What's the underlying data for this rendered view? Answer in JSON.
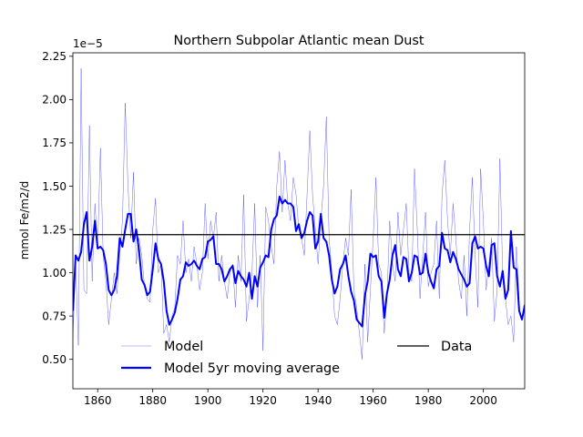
{
  "chart_data": {
    "type": "line",
    "title": "Northern Subpolar Atlantic  mean Dust",
    "ylabel": "mmol Fe/m2/d",
    "xlabel": "",
    "offset_label": "1e−5",
    "scale": 1e-05,
    "xlim": [
      1851,
      2015
    ],
    "ylim": [
      0.33,
      2.27
    ],
    "x_ticks": [
      1860,
      1880,
      1900,
      1920,
      1940,
      1960,
      1980,
      2000
    ],
    "x_tick_labels": [
      "1860",
      "1880",
      "1900",
      "1920",
      "1940",
      "1960",
      "1980",
      "2000"
    ],
    "y_ticks": [
      0.5,
      0.75,
      1.0,
      1.25,
      1.5,
      1.75,
      2.0,
      2.25
    ],
    "y_tick_labels": [
      "0.50",
      "0.75",
      "1.00",
      "1.25",
      "1.50",
      "1.75",
      "2.00",
      "2.25"
    ],
    "legend": {
      "position": "bottom",
      "entries": [
        "Model",
        "Model 5yr moving average",
        "Data"
      ]
    },
    "series": [
      {
        "name": "Model",
        "style": "thin",
        "color": "#0000ff",
        "x_start": 1851,
        "x_step": 1,
        "values": [
          0.62,
          1.05,
          0.58,
          2.18,
          0.9,
          0.88,
          1.85,
          0.95,
          1.4,
          1.15,
          1.72,
          1.1,
          0.95,
          0.7,
          0.85,
          1.0,
          0.88,
          1.1,
          1.3,
          1.98,
          1.5,
          1.2,
          1.58,
          1.05,
          1.2,
          1.1,
          0.92,
          0.85,
          0.83,
          1.25,
          1.43,
          1.0,
          1.05,
          0.65,
          0.7,
          0.6,
          0.75,
          0.8,
          1.1,
          1.05,
          1.3,
          1.0,
          1.08,
          0.95,
          1.15,
          1.05,
          0.9,
          1.0,
          1.4,
          1.08,
          1.3,
          1.2,
          1.35,
          0.95,
          1.1,
          0.95,
          0.85,
          1.0,
          1.05,
          0.8,
          1.1,
          0.95,
          1.45,
          0.72,
          0.85,
          1.0,
          1.4,
          0.8,
          1.1,
          0.55,
          1.38,
          1.3,
          1.15,
          1.05,
          1.5,
          1.7,
          1.35,
          1.65,
          1.4,
          1.3,
          1.55,
          1.45,
          1.25,
          1.2,
          1.1,
          1.45,
          1.82,
          1.45,
          1.25,
          1.05,
          1.3,
          1.5,
          1.9,
          1.2,
          1.0,
          0.75,
          0.7,
          0.85,
          1.05,
          1.2,
          1.1,
          1.48,
          0.9,
          0.8,
          0.65,
          0.5,
          1.05,
          0.6,
          0.9,
          1.2,
          1.55,
          1.05,
          1.0,
          0.65,
          0.85,
          1.3,
          1.05,
          0.95,
          1.35,
          1.1,
          1.25,
          1.4,
          1.0,
          0.95,
          1.6,
          1.25,
          0.85,
          1.1,
          1.35,
          0.92,
          1.0,
          1.05,
          1.3,
          0.85,
          1.45,
          1.65,
          1.3,
          1.1,
          1.4,
          1.2,
          0.95,
          0.85,
          1.1,
          0.75,
          1.25,
          1.55,
          1.1,
          0.8,
          1.6,
          1.3,
          0.9,
          1.05,
          1.2,
          0.72,
          0.9,
          1.66,
          1.0,
          0.85,
          0.7,
          0.75,
          0.6,
          1.15,
          0.85
        ]
      },
      {
        "name": "Model 5yr moving average",
        "style": "thick",
        "color": "#0000ff",
        "x_start": 1851,
        "x_step": 1,
        "values": [
          0.78,
          1.1,
          1.07,
          1.12,
          1.28,
          1.35,
          1.07,
          1.15,
          1.3,
          1.14,
          1.15,
          1.13,
          1.05,
          0.9,
          0.87,
          0.9,
          0.98,
          1.2,
          1.15,
          1.25,
          1.34,
          1.34,
          1.18,
          1.25,
          1.13,
          0.96,
          0.93,
          0.87,
          0.89,
          1.02,
          1.17,
          1.08,
          1.05,
          0.95,
          0.78,
          0.7,
          0.73,
          0.77,
          0.85,
          0.96,
          0.98,
          1.06,
          1.04,
          1.05,
          1.07,
          1.04,
          1.02,
          1.08,
          1.09,
          1.18,
          1.19,
          1.21,
          1.05,
          1.05,
          1.02,
          0.95,
          0.98,
          1.02,
          1.04,
          0.94,
          1.01,
          0.98,
          0.96,
          0.92,
          1.0,
          0.85,
          0.98,
          0.92,
          1.03,
          1.06,
          1.1,
          1.09,
          1.25,
          1.31,
          1.33,
          1.44,
          1.4,
          1.42,
          1.4,
          1.4,
          1.38,
          1.24,
          1.28,
          1.2,
          1.23,
          1.3,
          1.35,
          1.33,
          1.14,
          1.18,
          1.34,
          1.2,
          1.18,
          1.1,
          0.96,
          0.88,
          0.92,
          1.02,
          1.05,
          1.1,
          0.98,
          0.89,
          0.84,
          0.73,
          0.71,
          0.69,
          0.87,
          0.95,
          1.11,
          1.09,
          1.1,
          0.98,
          0.95,
          0.74,
          0.88,
          0.96,
          1.1,
          1.16,
          1.02,
          0.98,
          1.09,
          1.08,
          0.95,
          1.0,
          1.1,
          1.09,
          0.99,
          1.0,
          1.11,
          1.0,
          0.95,
          0.91,
          1.02,
          1.04,
          1.23,
          1.14,
          1.13,
          1.06,
          1.12,
          1.08,
          1.02,
          0.99,
          0.96,
          0.92,
          0.94,
          1.17,
          1.21,
          1.14,
          1.15,
          1.14,
          1.04,
          0.98,
          1.16,
          1.17,
          0.98,
          0.92,
          1.01,
          0.85,
          0.9,
          1.24,
          1.03,
          1.02,
          0.78,
          0.73,
          0.81,
          0.84,
          0.86
        ]
      },
      {
        "name": "Data",
        "style": "reference",
        "color": "#000000",
        "value": 1.22
      }
    ]
  }
}
